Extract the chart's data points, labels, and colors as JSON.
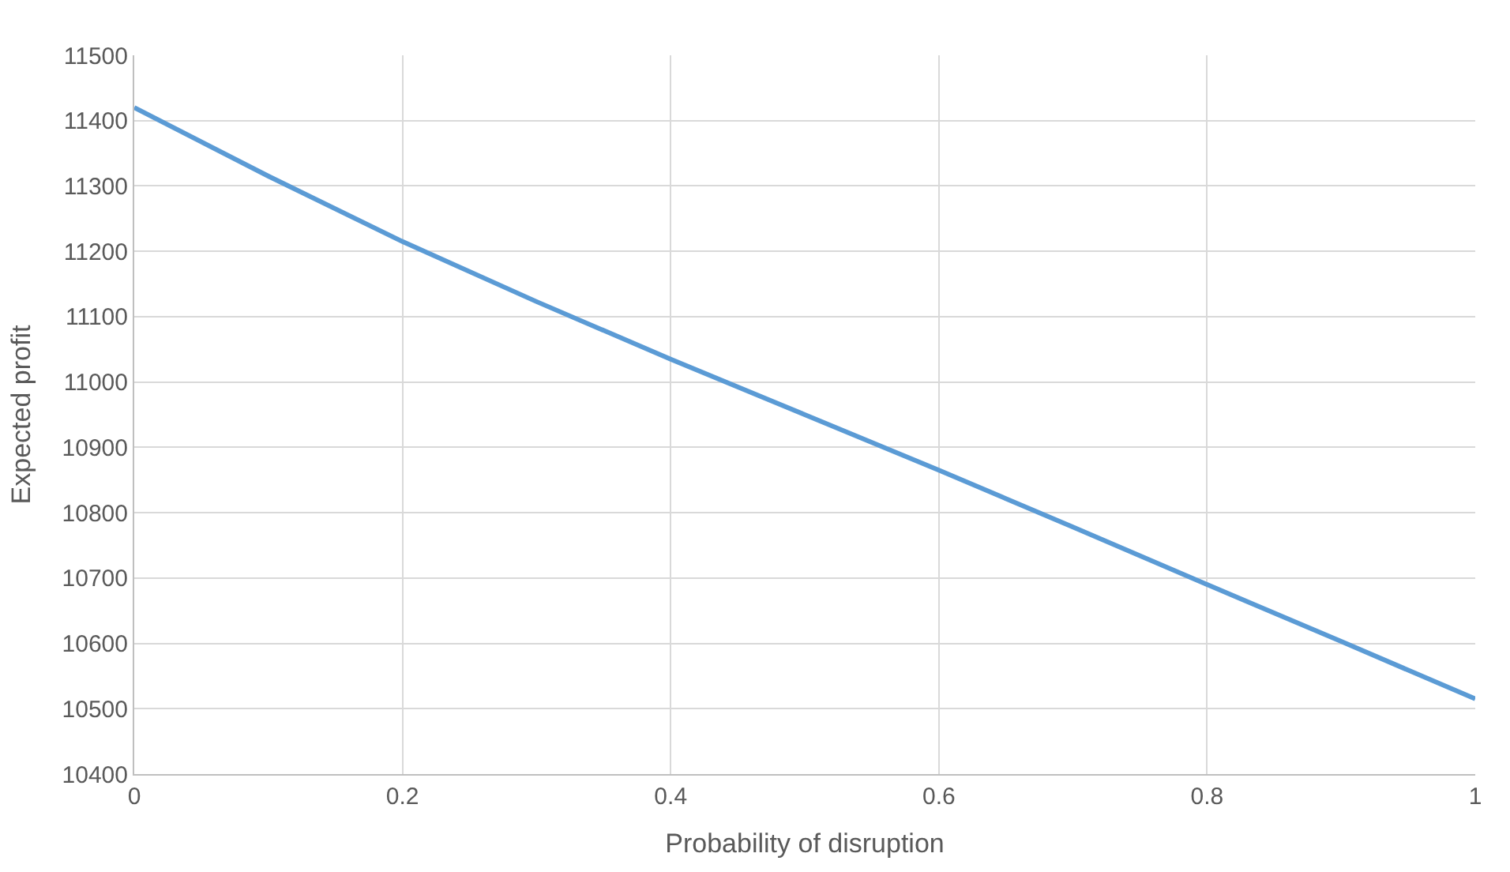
{
  "chart_data": {
    "type": "line",
    "xlabel": "Probability of disruption",
    "ylabel": "Expected profit",
    "x": [
      0,
      0.1,
      0.2,
      0.3,
      0.4,
      0.5,
      0.6,
      0.7,
      0.8,
      0.9,
      1
    ],
    "series": [
      {
        "color": "#5b9bd5",
        "values": [
          11420,
          11315,
          11215,
          11123,
          11035,
          10950,
          10865,
          10778,
          10690,
          10603,
          10515
        ]
      }
    ],
    "xlim": [
      0,
      1
    ],
    "xticks": [
      0,
      0.2,
      0.4,
      0.6,
      0.8,
      1
    ],
    "ylim": [
      10400,
      11500
    ],
    "yticks": [
      10400,
      10500,
      10600,
      10700,
      10800,
      10900,
      11000,
      11100,
      11200,
      11300,
      11400,
      11500
    ],
    "grid": true,
    "marker": "none",
    "line_style": "solid"
  }
}
